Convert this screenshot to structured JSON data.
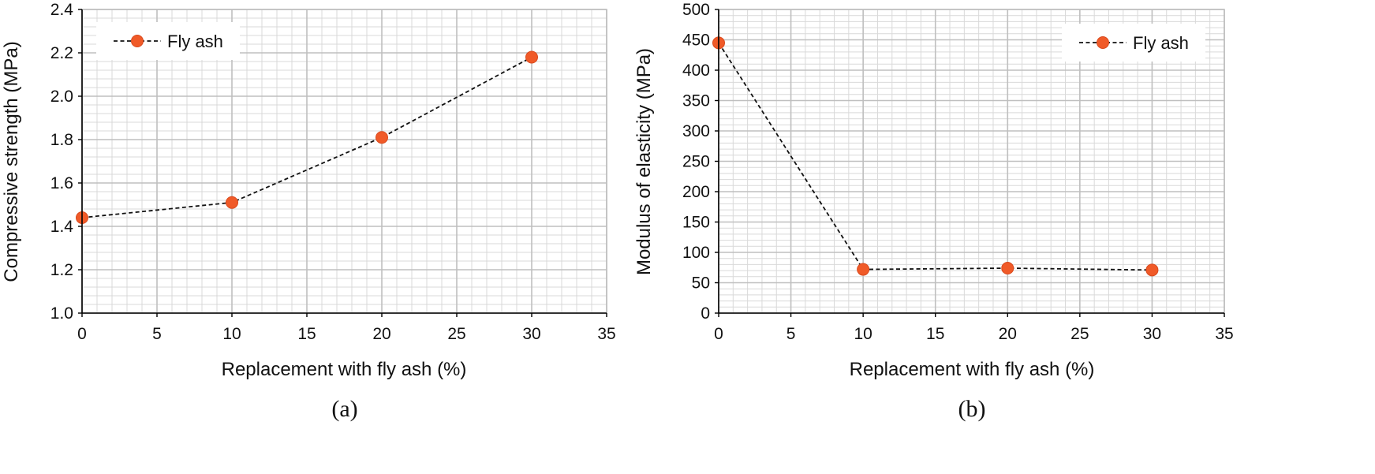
{
  "colors": {
    "marker": "#F05A28",
    "marker_edge": "#D94A1E",
    "line": "#111111",
    "major_grid": "#BFBFBF",
    "minor_grid": "#D9D9D9",
    "axis": "#000000"
  },
  "chart_data": [
    {
      "type": "line",
      "panel_label": "(a)",
      "xlabel": "Replacement with fly ash (%)",
      "ylabel": "Compressive strength (MPa)",
      "xlim": [
        0,
        35
      ],
      "ylim": [
        1.0,
        2.4
      ],
      "xticks": [
        0,
        5,
        10,
        15,
        20,
        25,
        30,
        35
      ],
      "xtick_labels": [
        "0",
        "5",
        "10",
        "15",
        "20",
        "25",
        "30",
        "35"
      ],
      "yticks": [
        1.0,
        1.2,
        1.4,
        1.6,
        1.8,
        2.0,
        2.2,
        2.4
      ],
      "ytick_labels": [
        "1.0",
        "1.2",
        "1.4",
        "1.6",
        "1.8",
        "2.0",
        "2.2",
        "2.4"
      ],
      "grid": true,
      "legend_position": "top-left",
      "series": [
        {
          "name": "Fly ash",
          "style": "dashed line with circle markers",
          "x": [
            0,
            10,
            20,
            30
          ],
          "y": [
            1.44,
            1.51,
            1.81,
            2.18
          ]
        }
      ]
    },
    {
      "type": "line",
      "panel_label": "(b)",
      "xlabel": "Replacement with fly ash (%)",
      "ylabel": "Modulus of elasticity (MPa)",
      "xlim": [
        0,
        35
      ],
      "ylim": [
        0,
        500
      ],
      "xticks": [
        0,
        5,
        10,
        15,
        20,
        25,
        30,
        35
      ],
      "xtick_labels": [
        "0",
        "5",
        "10",
        "15",
        "20",
        "25",
        "30",
        "35"
      ],
      "yticks": [
        0,
        50,
        100,
        150,
        200,
        250,
        300,
        350,
        400,
        450,
        500
      ],
      "ytick_labels": [
        "0",
        "50",
        "100",
        "150",
        "200",
        "250",
        "300",
        "350",
        "400",
        "450",
        "500"
      ],
      "grid": true,
      "legend_position": "top-right",
      "series": [
        {
          "name": "Fly ash",
          "style": "dashed line with circle markers",
          "x": [
            0,
            10,
            20,
            30
          ],
          "y": [
            445,
            72,
            74,
            71
          ]
        }
      ]
    }
  ]
}
